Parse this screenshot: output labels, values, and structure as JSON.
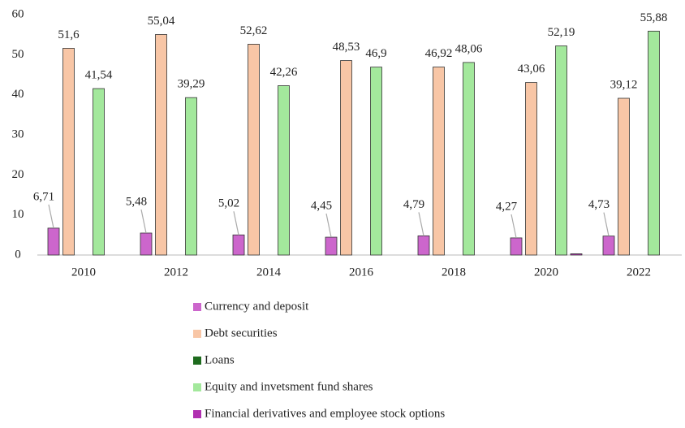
{
  "chart_data": {
    "type": "bar",
    "categories": [
      "2010",
      "2012",
      "2014",
      "2016",
      "2018",
      "2020",
      "2022"
    ],
    "series": [
      {
        "name": "Currency and deposit",
        "color": "#cc66cc",
        "values": [
          6.71,
          5.48,
          5.02,
          4.45,
          4.79,
          4.27,
          4.73
        ],
        "value_labels": [
          "6,71",
          "5,48",
          "5,02",
          "4,45",
          "4,79",
          "4,27",
          "4,73"
        ]
      },
      {
        "name": "Debt securities",
        "color": "#f8c6a6",
        "values": [
          51.6,
          55.04,
          52.62,
          48.53,
          46.92,
          43.06,
          39.12
        ],
        "value_labels": [
          "51,6",
          "55,04",
          "52,62",
          "48,53",
          "46,92",
          "43,06",
          "39,12"
        ]
      },
      {
        "name": "Loans",
        "color": "#1e6b1e",
        "values": [
          0,
          0,
          0,
          0,
          0,
          0,
          0
        ]
      },
      {
        "name": "Equity and invetsment fund shares",
        "color": "#a3e89c",
        "values": [
          41.54,
          39.29,
          42.26,
          46.9,
          48.06,
          52.19,
          55.88
        ],
        "value_labels": [
          "41,54",
          "39,29",
          "42,26",
          "46,9",
          "48,06",
          "52,19",
          "55,88"
        ]
      },
      {
        "name": "Financial derivatives and employee stock options",
        "color": "#b030b0",
        "values": [
          0,
          0,
          0,
          0,
          0,
          0.3,
          0
        ]
      }
    ],
    "ylim": [
      0,
      60
    ],
    "yticks": [
      0,
      10,
      20,
      30,
      40,
      50,
      60
    ],
    "grid": false,
    "legend": "bottom"
  }
}
